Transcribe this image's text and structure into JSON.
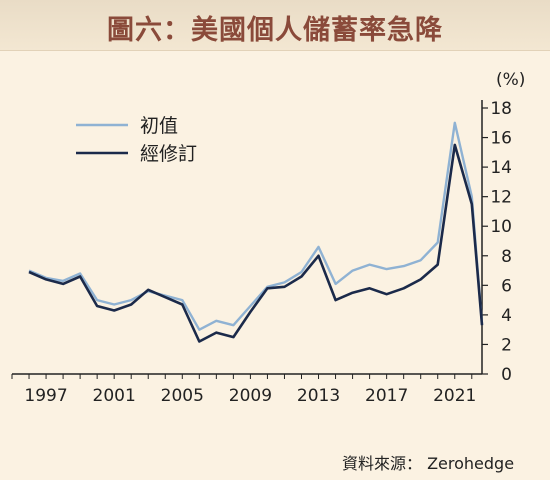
{
  "title": "圖六：美國個人儲蓄率急降",
  "source": "資料來源： Zerohedge",
  "chart_data": {
    "type": "line",
    "unit": "(%)",
    "xlim": [
      1995,
      2022.6
    ],
    "ylim": [
      0,
      18
    ],
    "x_ticks": [
      1997,
      2001,
      2005,
      2009,
      2013,
      2017,
      2021
    ],
    "y_ticks": [
      0,
      2,
      4,
      6,
      8,
      10,
      12,
      14,
      16,
      18
    ],
    "legend_position": "top-left",
    "series": [
      {
        "name": "初值",
        "color": "#8fb2d3",
        "points": [
          [
            1996,
            7.0
          ],
          [
            1997,
            6.5
          ],
          [
            1998,
            6.3
          ],
          [
            1999,
            6.8
          ],
          [
            2000,
            5.0
          ],
          [
            2001,
            4.7
          ],
          [
            2002,
            5.0
          ],
          [
            2003,
            5.6
          ],
          [
            2004,
            5.3
          ],
          [
            2005,
            5.0
          ],
          [
            2006,
            3.0
          ],
          [
            2007,
            3.6
          ],
          [
            2008,
            3.3
          ],
          [
            2009,
            4.6
          ],
          [
            2010,
            5.9
          ],
          [
            2011,
            6.2
          ],
          [
            2012,
            6.9
          ],
          [
            2013,
            8.6
          ],
          [
            2014,
            6.1
          ],
          [
            2015,
            7.0
          ],
          [
            2016,
            7.4
          ],
          [
            2017,
            7.1
          ],
          [
            2018,
            7.3
          ],
          [
            2019,
            7.7
          ],
          [
            2020,
            8.9
          ],
          [
            2021,
            17.0
          ],
          [
            2022,
            12.0
          ],
          [
            2022.6,
            3.4
          ]
        ]
      },
      {
        "name": "經修訂",
        "color": "#1b2a4a",
        "points": [
          [
            1996,
            6.9
          ],
          [
            1997,
            6.4
          ],
          [
            1998,
            6.1
          ],
          [
            1999,
            6.6
          ],
          [
            2000,
            4.6
          ],
          [
            2001,
            4.3
          ],
          [
            2002,
            4.7
          ],
          [
            2003,
            5.7
          ],
          [
            2004,
            5.2
          ],
          [
            2005,
            4.7
          ],
          [
            2006,
            2.2
          ],
          [
            2007,
            2.8
          ],
          [
            2008,
            2.5
          ],
          [
            2009,
            4.2
          ],
          [
            2010,
            5.8
          ],
          [
            2011,
            5.9
          ],
          [
            2012,
            6.6
          ],
          [
            2013,
            8.0
          ],
          [
            2014,
            5.0
          ],
          [
            2015,
            5.5
          ],
          [
            2016,
            5.8
          ],
          [
            2017,
            5.4
          ],
          [
            2018,
            5.8
          ],
          [
            2019,
            6.4
          ],
          [
            2020,
            7.4
          ],
          [
            2021,
            15.5
          ],
          [
            2022,
            11.5
          ],
          [
            2022.6,
            3.3
          ]
        ]
      }
    ]
  }
}
